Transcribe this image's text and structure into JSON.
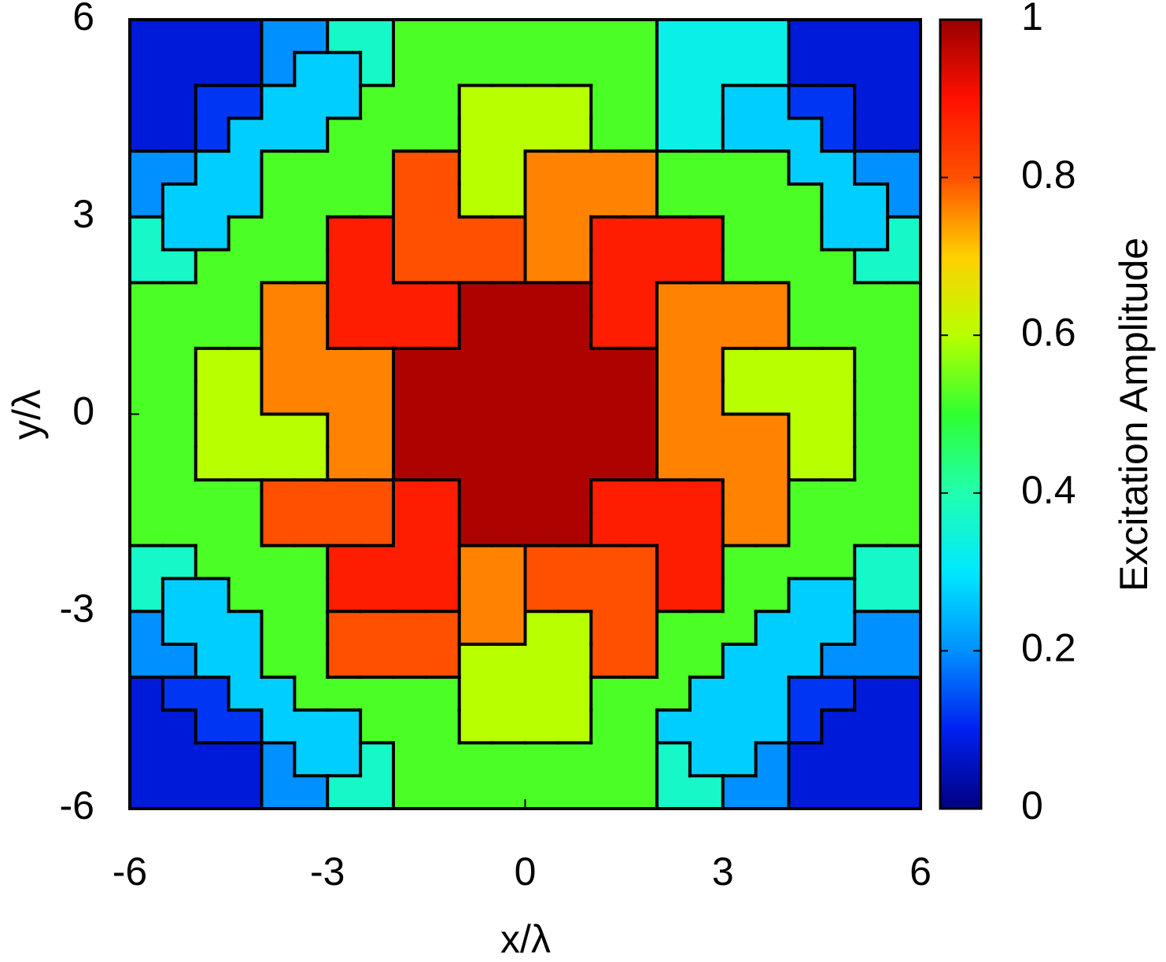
{
  "chart_data": {
    "type": "heatmap",
    "xlabel": "x/λ",
    "ylabel": "y/λ",
    "colorbar_label": "Excitation Amplitude",
    "xlim": [
      -6,
      6
    ],
    "ylim": [
      -6,
      6
    ],
    "xticks": [
      -6,
      -3,
      0,
      3,
      6
    ],
    "yticks": [
      -6,
      -3,
      0,
      3,
      6
    ],
    "clim": [
      0,
      1
    ],
    "cticks": [
      0,
      0.2,
      0.4,
      0.6,
      0.8,
      1
    ],
    "colormap": [
      "#000080",
      "#0020f0",
      "#0090ff",
      "#00e8ff",
      "#20ffb0",
      "#30ff30",
      "#b8ff00",
      "#ffd000",
      "#ff5000",
      "#ff1000",
      "#980000"
    ],
    "z": [
      [
        0.08,
        0.08,
        0.08,
        0.08,
        0.2,
        0.2,
        0.37,
        0.37,
        0.52,
        0.52,
        0.52,
        0.52,
        0.52,
        0.52,
        0.52,
        0.52,
        0.33,
        0.33,
        0.33,
        0.33,
        0.08,
        0.08,
        0.08,
        0.08
      ],
      [
        0.08,
        0.08,
        0.08,
        0.08,
        0.2,
        0.27,
        0.27,
        0.37,
        0.52,
        0.52,
        0.52,
        0.52,
        0.52,
        0.52,
        0.52,
        0.52,
        0.33,
        0.33,
        0.33,
        0.33,
        0.08,
        0.08,
        0.08,
        0.08
      ],
      [
        0.08,
        0.08,
        0.12,
        0.12,
        0.27,
        0.27,
        0.27,
        0.52,
        0.52,
        0.52,
        0.6,
        0.6,
        0.6,
        0.6,
        0.52,
        0.52,
        0.33,
        0.33,
        0.27,
        0.27,
        0.12,
        0.12,
        0.08,
        0.08
      ],
      [
        0.08,
        0.08,
        0.12,
        0.27,
        0.27,
        0.27,
        0.52,
        0.52,
        0.52,
        0.52,
        0.6,
        0.6,
        0.6,
        0.6,
        0.52,
        0.52,
        0.33,
        0.33,
        0.27,
        0.27,
        0.27,
        0.12,
        0.08,
        0.08
      ],
      [
        0.2,
        0.2,
        0.27,
        0.27,
        0.52,
        0.52,
        0.52,
        0.52,
        0.8,
        0.8,
        0.6,
        0.6,
        0.76,
        0.76,
        0.76,
        0.76,
        0.52,
        0.52,
        0.52,
        0.52,
        0.27,
        0.27,
        0.2,
        0.2
      ],
      [
        0.2,
        0.27,
        0.27,
        0.27,
        0.52,
        0.52,
        0.52,
        0.52,
        0.8,
        0.8,
        0.6,
        0.6,
        0.76,
        0.76,
        0.76,
        0.76,
        0.52,
        0.52,
        0.52,
        0.52,
        0.52,
        0.27,
        0.27,
        0.2
      ],
      [
        0.37,
        0.27,
        0.27,
        0.52,
        0.52,
        0.52,
        0.88,
        0.88,
        0.8,
        0.8,
        0.8,
        0.8,
        0.76,
        0.76,
        0.88,
        0.88,
        0.88,
        0.88,
        0.52,
        0.52,
        0.52,
        0.27,
        0.27,
        0.37
      ],
      [
        0.37,
        0.37,
        0.52,
        0.52,
        0.52,
        0.52,
        0.88,
        0.88,
        0.8,
        0.8,
        0.8,
        0.8,
        0.76,
        0.76,
        0.88,
        0.88,
        0.88,
        0.88,
        0.52,
        0.52,
        0.52,
        0.52,
        0.37,
        0.37
      ],
      [
        0.52,
        0.52,
        0.52,
        0.52,
        0.76,
        0.76,
        0.88,
        0.88,
        0.88,
        0.88,
        0.98,
        0.98,
        0.98,
        0.98,
        0.88,
        0.88,
        0.76,
        0.76,
        0.76,
        0.76,
        0.52,
        0.52,
        0.52,
        0.52
      ],
      [
        0.52,
        0.52,
        0.52,
        0.52,
        0.76,
        0.76,
        0.88,
        0.88,
        0.88,
        0.88,
        0.98,
        0.98,
        0.98,
        0.98,
        0.88,
        0.88,
        0.76,
        0.76,
        0.76,
        0.76,
        0.52,
        0.52,
        0.52,
        0.52
      ],
      [
        0.52,
        0.52,
        0.6,
        0.6,
        0.76,
        0.76,
        0.76,
        0.76,
        0.98,
        0.98,
        0.98,
        0.98,
        0.98,
        0.98,
        0.98,
        0.98,
        0.76,
        0.76,
        0.6,
        0.6,
        0.6,
        0.6,
        0.52,
        0.52
      ],
      [
        0.52,
        0.52,
        0.6,
        0.6,
        0.76,
        0.76,
        0.76,
        0.76,
        0.98,
        0.98,
        0.98,
        0.98,
        0.98,
        0.98,
        0.98,
        0.98,
        0.76,
        0.76,
        0.6,
        0.6,
        0.6,
        0.6,
        0.52,
        0.52
      ],
      [
        0.52,
        0.52,
        0.6,
        0.6,
        0.6,
        0.6,
        0.76,
        0.76,
        0.98,
        0.98,
        0.98,
        0.98,
        0.98,
        0.98,
        0.98,
        0.98,
        0.76,
        0.76,
        0.76,
        0.76,
        0.6,
        0.6,
        0.52,
        0.52
      ],
      [
        0.52,
        0.52,
        0.6,
        0.6,
        0.6,
        0.6,
        0.76,
        0.76,
        0.98,
        0.98,
        0.98,
        0.98,
        0.98,
        0.98,
        0.98,
        0.98,
        0.76,
        0.76,
        0.76,
        0.76,
        0.6,
        0.6,
        0.52,
        0.52
      ],
      [
        0.52,
        0.52,
        0.52,
        0.52,
        0.8,
        0.8,
        0.8,
        0.8,
        0.88,
        0.88,
        0.98,
        0.98,
        0.98,
        0.98,
        0.88,
        0.88,
        0.88,
        0.88,
        0.76,
        0.76,
        0.52,
        0.52,
        0.52,
        0.52
      ],
      [
        0.52,
        0.52,
        0.52,
        0.52,
        0.8,
        0.8,
        0.8,
        0.8,
        0.88,
        0.88,
        0.98,
        0.98,
        0.98,
        0.98,
        0.88,
        0.88,
        0.88,
        0.88,
        0.76,
        0.76,
        0.52,
        0.52,
        0.52,
        0.52
      ],
      [
        0.37,
        0.37,
        0.52,
        0.52,
        0.52,
        0.52,
        0.88,
        0.88,
        0.88,
        0.88,
        0.76,
        0.76,
        0.8,
        0.8,
        0.8,
        0.8,
        0.88,
        0.88,
        0.52,
        0.52,
        0.52,
        0.52,
        0.37,
        0.37
      ],
      [
        0.37,
        0.27,
        0.27,
        0.52,
        0.52,
        0.52,
        0.88,
        0.88,
        0.88,
        0.88,
        0.76,
        0.76,
        0.8,
        0.8,
        0.8,
        0.8,
        0.88,
        0.88,
        0.52,
        0.52,
        0.27,
        0.27,
        0.37,
        0.37
      ],
      [
        0.2,
        0.27,
        0.27,
        0.27,
        0.52,
        0.52,
        0.8,
        0.8,
        0.8,
        0.8,
        0.76,
        0.76,
        0.6,
        0.6,
        0.8,
        0.8,
        0.52,
        0.52,
        0.52,
        0.27,
        0.27,
        0.27,
        0.2,
        0.2
      ],
      [
        0.2,
        0.2,
        0.27,
        0.27,
        0.52,
        0.52,
        0.8,
        0.8,
        0.8,
        0.8,
        0.6,
        0.6,
        0.6,
        0.6,
        0.8,
        0.8,
        0.52,
        0.52,
        0.27,
        0.27,
        0.27,
        0.2,
        0.2,
        0.2
      ],
      [
        0.08,
        0.12,
        0.12,
        0.27,
        0.27,
        0.52,
        0.52,
        0.52,
        0.52,
        0.52,
        0.6,
        0.6,
        0.6,
        0.6,
        0.52,
        0.52,
        0.52,
        0.27,
        0.27,
        0.27,
        0.12,
        0.12,
        0.08,
        0.08
      ],
      [
        0.08,
        0.08,
        0.12,
        0.12,
        0.27,
        0.27,
        0.27,
        0.52,
        0.52,
        0.52,
        0.6,
        0.6,
        0.6,
        0.6,
        0.52,
        0.52,
        0.27,
        0.27,
        0.27,
        0.27,
        0.12,
        0.08,
        0.08,
        0.08
      ],
      [
        0.08,
        0.08,
        0.08,
        0.08,
        0.2,
        0.27,
        0.27,
        0.37,
        0.52,
        0.52,
        0.52,
        0.52,
        0.52,
        0.52,
        0.52,
        0.52,
        0.37,
        0.27,
        0.27,
        0.2,
        0.08,
        0.08,
        0.08,
        0.08
      ],
      [
        0.08,
        0.08,
        0.08,
        0.08,
        0.2,
        0.2,
        0.37,
        0.37,
        0.52,
        0.52,
        0.52,
        0.52,
        0.52,
        0.52,
        0.52,
        0.52,
        0.37,
        0.37,
        0.2,
        0.2,
        0.08,
        0.08,
        0.08,
        0.08
      ]
    ]
  }
}
